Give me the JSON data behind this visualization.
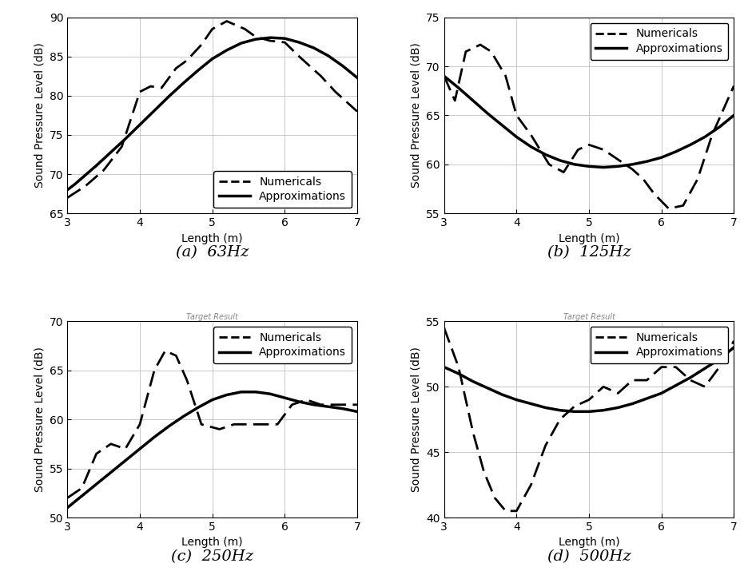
{
  "subplots": [
    {
      "label": "(a)  63Hz",
      "ylabel": "Sound Pressure Level (dB)",
      "xlabel": "Length (m)",
      "xlim": [
        3,
        7
      ],
      "ylim": [
        65,
        90
      ],
      "yticks": [
        65,
        70,
        75,
        80,
        85,
        90
      ],
      "xticks": [
        3,
        4,
        5,
        6,
        7
      ],
      "approx_x": [
        3.0,
        3.1,
        3.2,
        3.4,
        3.6,
        3.8,
        4.0,
        4.2,
        4.4,
        4.6,
        4.8,
        5.0,
        5.2,
        5.4,
        5.6,
        5.8,
        6.0,
        6.2,
        6.4,
        6.6,
        6.8,
        7.0
      ],
      "approx_y": [
        68.0,
        68.7,
        69.5,
        71.1,
        72.8,
        74.5,
        76.3,
        78.1,
        79.9,
        81.6,
        83.2,
        84.7,
        85.8,
        86.7,
        87.2,
        87.4,
        87.3,
        86.8,
        86.1,
        85.1,
        83.8,
        82.3
      ],
      "numer_x": [
        3.0,
        3.25,
        3.5,
        3.75,
        4.0,
        4.15,
        4.3,
        4.5,
        4.65,
        4.85,
        5.0,
        5.2,
        5.45,
        5.6,
        5.8,
        6.0,
        6.2,
        6.5,
        6.7,
        7.0
      ],
      "numer_y": [
        67.0,
        68.5,
        70.5,
        73.5,
        80.5,
        81.2,
        81.0,
        83.5,
        84.5,
        86.5,
        88.5,
        89.5,
        88.5,
        87.5,
        87.0,
        86.8,
        85.0,
        82.5,
        80.5,
        78.0
      ]
    },
    {
      "label": "(b)  125Hz",
      "ylabel": "Sound Pressure Level (dB)",
      "xlabel": "Length (m)",
      "xlim": [
        3,
        7
      ],
      "ylim": [
        55,
        75
      ],
      "yticks": [
        55,
        60,
        65,
        70,
        75
      ],
      "xticks": [
        3,
        4,
        5,
        6,
        7
      ],
      "approx_x": [
        3.0,
        3.2,
        3.4,
        3.6,
        3.8,
        4.0,
        4.2,
        4.4,
        4.6,
        4.8,
        5.0,
        5.2,
        5.4,
        5.6,
        5.8,
        6.0,
        6.2,
        6.4,
        6.6,
        6.8,
        7.0
      ],
      "approx_y": [
        69.0,
        67.8,
        66.5,
        65.2,
        64.0,
        62.8,
        61.8,
        61.0,
        60.4,
        60.0,
        59.8,
        59.7,
        59.8,
        60.0,
        60.3,
        60.7,
        61.3,
        62.0,
        62.8,
        63.8,
        65.0
      ],
      "numer_x": [
        3.0,
        3.15,
        3.3,
        3.5,
        3.65,
        3.85,
        4.0,
        4.2,
        4.45,
        4.65,
        4.85,
        5.0,
        5.2,
        5.4,
        5.6,
        5.75,
        5.9,
        6.1,
        6.3,
        6.5,
        6.7,
        6.85,
        7.0
      ],
      "numer_y": [
        69.0,
        66.5,
        71.5,
        72.2,
        71.5,
        69.0,
        65.0,
        63.0,
        60.0,
        59.2,
        61.5,
        62.0,
        61.5,
        60.5,
        59.5,
        58.5,
        57.0,
        55.5,
        55.8,
        58.5,
        63.0,
        65.5,
        68.0
      ]
    },
    {
      "label": "(c)  250Hz",
      "ylabel": "Sound Pressure Level (dB)",
      "xlabel": "Length (m)",
      "xlim": [
        3,
        7
      ],
      "ylim": [
        50,
        70
      ],
      "yticks": [
        50,
        55,
        60,
        65,
        70
      ],
      "xticks": [
        3,
        4,
        5,
        6,
        7
      ],
      "approx_x": [
        3.0,
        3.2,
        3.4,
        3.6,
        3.8,
        4.0,
        4.2,
        4.4,
        4.6,
        4.8,
        5.0,
        5.2,
        5.4,
        5.6,
        5.8,
        6.0,
        6.2,
        6.4,
        6.6,
        6.8,
        7.0
      ],
      "approx_y": [
        51.0,
        52.2,
        53.4,
        54.6,
        55.8,
        57.0,
        58.2,
        59.3,
        60.3,
        61.2,
        62.0,
        62.5,
        62.8,
        62.8,
        62.6,
        62.2,
        61.8,
        61.5,
        61.3,
        61.1,
        60.8
      ],
      "numer_x": [
        3.0,
        3.2,
        3.4,
        3.6,
        3.8,
        4.0,
        4.2,
        4.35,
        4.5,
        4.65,
        4.85,
        5.1,
        5.3,
        5.5,
        5.7,
        5.9,
        6.1,
        6.3,
        6.5,
        6.7,
        7.0
      ],
      "numer_y": [
        52.0,
        53.0,
        56.5,
        57.5,
        57.0,
        59.5,
        65.0,
        67.0,
        66.5,
        64.0,
        59.5,
        59.0,
        59.5,
        59.5,
        59.5,
        59.5,
        61.5,
        62.0,
        61.5,
        61.5,
        61.5
      ]
    },
    {
      "label": "(d)  500Hz",
      "ylabel": "Sound Pressure Level (dB)",
      "xlabel": "Length (m)",
      "xlim": [
        3,
        7
      ],
      "ylim": [
        40,
        55
      ],
      "yticks": [
        40,
        45,
        50,
        55
      ],
      "xticks": [
        3,
        4,
        5,
        6,
        7
      ],
      "approx_x": [
        3.0,
        3.2,
        3.4,
        3.6,
        3.8,
        4.0,
        4.2,
        4.4,
        4.6,
        4.8,
        5.0,
        5.2,
        5.4,
        5.6,
        5.8,
        6.0,
        6.2,
        6.4,
        6.6,
        6.8,
        7.0
      ],
      "approx_y": [
        51.5,
        51.0,
        50.4,
        49.9,
        49.4,
        49.0,
        48.7,
        48.4,
        48.2,
        48.1,
        48.1,
        48.2,
        48.4,
        48.7,
        49.1,
        49.5,
        50.1,
        50.7,
        51.4,
        52.1,
        53.0
      ],
      "numer_x": [
        3.0,
        3.2,
        3.4,
        3.55,
        3.7,
        3.85,
        4.0,
        4.2,
        4.4,
        4.6,
        4.8,
        5.0,
        5.2,
        5.4,
        5.6,
        5.8,
        6.0,
        6.2,
        6.4,
        6.6,
        6.8,
        7.0
      ],
      "numer_y": [
        54.5,
        51.5,
        46.5,
        43.5,
        41.5,
        40.5,
        40.5,
        42.5,
        45.5,
        47.5,
        48.5,
        49.0,
        50.0,
        49.5,
        50.5,
        50.5,
        51.5,
        51.5,
        50.5,
        50.0,
        51.5,
        53.5
      ]
    }
  ],
  "line_color": "#000000",
  "approx_linewidth": 2.5,
  "numer_linewidth": 2.0,
  "legend_labels": [
    "Numericals",
    "Approximations"
  ],
  "grid_color": "#c0c0c0",
  "background_color": "#ffffff",
  "label_fontsize": 10,
  "tick_fontsize": 10,
  "legend_fontsize": 10,
  "subtitle_fontsize": 14,
  "partial_title": "Target Result"
}
